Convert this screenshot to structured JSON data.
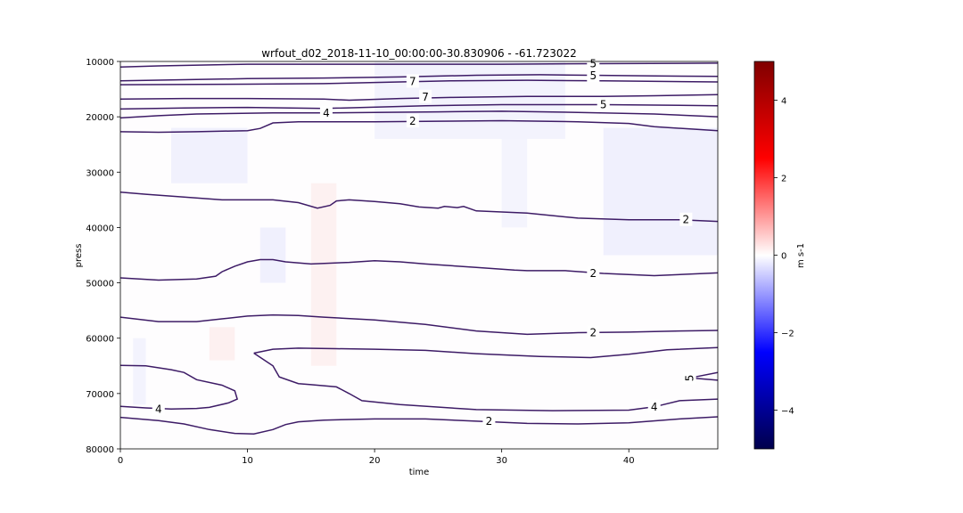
{
  "chart_data": {
    "type": "heatmap",
    "title": "wrfout_d02_2018-11-10_00:00:00-30.830906 - -61.723022",
    "xlabel": "time",
    "ylabel": "press",
    "xlim": [
      0,
      47
    ],
    "ylim": [
      80000,
      10000
    ],
    "y_inverted": true,
    "xticks": [
      0,
      10,
      20,
      30,
      40
    ],
    "xtick_labels": [
      "0",
      "10",
      "20",
      "30",
      "40"
    ],
    "yticks": [
      10000,
      20000,
      30000,
      40000,
      50000,
      60000,
      70000,
      80000
    ],
    "ytick_labels": [
      "10000",
      "20000",
      "30000",
      "40000",
      "50000",
      "60000",
      "70000",
      "80000"
    ],
    "colormap": "seismic",
    "colorbar": {
      "label": "m s-1",
      "range": [
        -5,
        5
      ],
      "ticks": [
        4,
        2,
        0,
        -2,
        -4
      ],
      "tick_labels": [
        "4",
        "2",
        "0",
        "−2",
        "−4"
      ]
    },
    "contours": [
      {
        "level": 5,
        "points": [
          [
            0,
            11000
          ],
          [
            3,
            10800
          ],
          [
            10,
            10500
          ],
          [
            20,
            10500
          ],
          [
            30,
            10500
          ],
          [
            37,
            10400
          ],
          [
            47,
            10300
          ]
        ]
      },
      {
        "level": 5,
        "points": [
          [
            0,
            13500
          ],
          [
            5,
            13300
          ],
          [
            10,
            13100
          ],
          [
            16,
            13000
          ],
          [
            22,
            12800
          ],
          [
            28,
            12500
          ],
          [
            33,
            12400
          ],
          [
            37,
            12500
          ],
          [
            42,
            12600
          ],
          [
            47,
            12700
          ]
        ]
      },
      {
        "level": 7,
        "points": [
          [
            0,
            14200
          ],
          [
            10,
            14100
          ],
          [
            16,
            14000
          ],
          [
            20,
            13800
          ],
          [
            26,
            13500
          ],
          [
            32,
            13400
          ],
          [
            38,
            13500
          ],
          [
            47,
            13700
          ]
        ]
      },
      {
        "level": 7,
        "points": [
          [
            0,
            16800
          ],
          [
            5,
            16700
          ],
          [
            10,
            16700
          ],
          [
            16,
            16800
          ],
          [
            18,
            17000
          ],
          [
            22,
            16700
          ],
          [
            26,
            16500
          ],
          [
            32,
            16300
          ],
          [
            38,
            16300
          ],
          [
            42,
            16200
          ],
          [
            47,
            16000
          ]
        ]
      },
      {
        "level": 5,
        "points": [
          [
            0,
            18600
          ],
          [
            5,
            18400
          ],
          [
            10,
            18300
          ],
          [
            16,
            18500
          ],
          [
            24,
            18000
          ],
          [
            30,
            17800
          ],
          [
            38,
            17800
          ],
          [
            47,
            18000
          ]
        ]
      },
      {
        "level": 4,
        "points": [
          [
            0,
            20200
          ],
          [
            3,
            19800
          ],
          [
            6,
            19500
          ],
          [
            12,
            19300
          ],
          [
            16,
            19300
          ],
          [
            20,
            19200
          ],
          [
            25,
            19100
          ],
          [
            30,
            19000
          ],
          [
            36,
            19200
          ],
          [
            42,
            19500
          ],
          [
            47,
            20000
          ]
        ]
      },
      {
        "level": 2,
        "points": [
          [
            0,
            22700
          ],
          [
            3,
            22800
          ],
          [
            6,
            22700
          ],
          [
            10,
            22500
          ],
          [
            11,
            22100
          ],
          [
            12,
            21100
          ],
          [
            14,
            20900
          ],
          [
            20,
            20900
          ],
          [
            25,
            20800
          ],
          [
            30,
            20700
          ],
          [
            36,
            20900
          ],
          [
            40,
            21200
          ],
          [
            42,
            21800
          ],
          [
            47,
            22500
          ]
        ]
      },
      {
        "level": 2,
        "points": [
          [
            0,
            33600
          ],
          [
            2,
            34000
          ],
          [
            5,
            34500
          ],
          [
            8,
            35000
          ],
          [
            12,
            35000
          ],
          [
            14,
            35500
          ],
          [
            15.5,
            36500
          ],
          [
            16.5,
            36000
          ],
          [
            17,
            35200
          ],
          [
            18,
            35000
          ],
          [
            20,
            35300
          ],
          [
            22,
            35700
          ],
          [
            23.5,
            36300
          ],
          [
            25,
            36500
          ],
          [
            25.5,
            36200
          ],
          [
            26.5,
            36400
          ],
          [
            27,
            36200
          ],
          [
            28,
            37000
          ],
          [
            32,
            37400
          ],
          [
            36,
            38300
          ],
          [
            40,
            38600
          ],
          [
            44,
            38600
          ],
          [
            47,
            38900
          ]
        ]
      },
      {
        "level": 2,
        "points": [
          [
            0,
            49100
          ],
          [
            3,
            49500
          ],
          [
            6,
            49300
          ],
          [
            7.5,
            48800
          ],
          [
            8,
            48000
          ],
          [
            9,
            47000
          ],
          [
            10,
            46200
          ],
          [
            11,
            45800
          ],
          [
            12,
            45800
          ],
          [
            13,
            46200
          ],
          [
            15,
            46600
          ],
          [
            18,
            46300
          ],
          [
            20,
            46000
          ],
          [
            22,
            46200
          ],
          [
            24,
            46600
          ],
          [
            28,
            47200
          ],
          [
            31,
            47700
          ],
          [
            32,
            47800
          ],
          [
            35,
            47800
          ],
          [
            38,
            48300
          ],
          [
            40,
            48500
          ],
          [
            42,
            48700
          ],
          [
            47,
            48200
          ]
        ]
      },
      {
        "level": 2,
        "points": [
          [
            0,
            56200
          ],
          [
            3,
            57000
          ],
          [
            6,
            57000
          ],
          [
            8,
            56500
          ],
          [
            10,
            56000
          ],
          [
            12,
            55800
          ],
          [
            14,
            55900
          ],
          [
            16,
            56200
          ],
          [
            20,
            56700
          ],
          [
            24,
            57500
          ],
          [
            28,
            58700
          ],
          [
            32,
            59300
          ],
          [
            36,
            59000
          ],
          [
            40,
            58900
          ],
          [
            44,
            58700
          ],
          [
            47,
            58600
          ]
        ]
      },
      {
        "level": 2,
        "points": [
          [
            10.5,
            62700
          ],
          [
            12,
            62000
          ],
          [
            14,
            61800
          ],
          [
            17,
            61900
          ],
          [
            20,
            62000
          ],
          [
            24,
            62200
          ],
          [
            28,
            62800
          ],
          [
            33,
            63300
          ],
          [
            37,
            63500
          ],
          [
            38,
            63300
          ],
          [
            40,
            62900
          ],
          [
            43,
            62100
          ],
          [
            47,
            61700
          ]
        ]
      },
      {
        "level": 5,
        "points": [
          [
            45,
            67100
          ],
          [
            47,
            66200
          ]
        ]
      },
      {
        "level": 5,
        "points": [
          [
            45,
            67200
          ],
          [
            47,
            67600
          ]
        ]
      },
      {
        "level": 4,
        "points": [
          [
            0,
            64900
          ],
          [
            2,
            65000
          ],
          [
            4,
            65700
          ],
          [
            5,
            66200
          ],
          [
            6,
            67500
          ],
          [
            8,
            68500
          ],
          [
            9,
            69500
          ],
          [
            9.2,
            71000
          ],
          [
            8.5,
            71700
          ],
          [
            7,
            72500
          ],
          [
            6,
            72700
          ],
          [
            4,
            72800
          ],
          [
            2,
            72600
          ],
          [
            0,
            72300
          ]
        ]
      },
      {
        "level": 4,
        "points": [
          [
            10.5,
            62700
          ],
          [
            12,
            65000
          ],
          [
            12.5,
            67000
          ],
          [
            14,
            68200
          ],
          [
            15,
            68400
          ],
          [
            17,
            68800
          ],
          [
            18,
            70000
          ],
          [
            19,
            71300
          ],
          [
            22,
            72000
          ],
          [
            28,
            72900
          ],
          [
            34,
            73100
          ],
          [
            40,
            73000
          ],
          [
            42,
            72400
          ],
          [
            44,
            71300
          ],
          [
            47,
            71000
          ]
        ]
      },
      {
        "level": 2,
        "points": [
          [
            0,
            74300
          ],
          [
            3,
            74900
          ],
          [
            5,
            75500
          ],
          [
            7,
            76500
          ],
          [
            9,
            77200
          ],
          [
            10.5,
            77300
          ],
          [
            12,
            76500
          ],
          [
            13,
            75600
          ],
          [
            14,
            75100
          ],
          [
            16,
            74800
          ],
          [
            20,
            74600
          ],
          [
            24,
            74600
          ],
          [
            28,
            75000
          ],
          [
            32,
            75400
          ],
          [
            36,
            75500
          ],
          [
            40,
            75300
          ],
          [
            44,
            74600
          ],
          [
            47,
            74200
          ]
        ]
      }
    ],
    "contour_labels": [
      {
        "text": "5",
        "x": 37.2,
        "y": 10400
      },
      {
        "text": "5",
        "x": 37.2,
        "y": 12600
      },
      {
        "text": "7",
        "x": 23,
        "y": 13600
      },
      {
        "text": "7",
        "x": 24,
        "y": 16400
      },
      {
        "text": "5",
        "x": 38,
        "y": 17800
      },
      {
        "text": "4",
        "x": 16.2,
        "y": 19300
      },
      {
        "text": "2",
        "x": 23,
        "y": 20800
      },
      {
        "text": "2",
        "x": 44.5,
        "y": 38600
      },
      {
        "text": "2",
        "x": 37.2,
        "y": 48300
      },
      {
        "text": "2",
        "x": 37.2,
        "y": 59000
      },
      {
        "text": "5",
        "x": 44.8,
        "y": 67200,
        "rotated": true
      },
      {
        "text": "4",
        "x": 3,
        "y": 72800
      },
      {
        "text": "4",
        "x": 42,
        "y": 72400
      },
      {
        "text": "2",
        "x": 29,
        "y": 75000
      }
    ],
    "shading_notes": "near-zero field, mostly white with faint blue/red cells",
    "faint_cells": [
      {
        "x0": 4,
        "x1": 10,
        "y0": 22000,
        "y1": 32000,
        "color": "#f1f1fd"
      },
      {
        "x0": 11,
        "x1": 13,
        "y0": 40000,
        "y1": 50000,
        "color": "#f0f0fd"
      },
      {
        "x0": 15,
        "x1": 17,
        "y0": 32000,
        "y1": 65000,
        "color": "#fdf1f1"
      },
      {
        "x0": 7,
        "x1": 9,
        "y0": 58000,
        "y1": 64000,
        "color": "#fdf0f0"
      },
      {
        "x0": 20,
        "x1": 35,
        "y0": 10000,
        "y1": 24000,
        "color": "#f3f3fd"
      },
      {
        "x0": 38,
        "x1": 47,
        "y0": 22000,
        "y1": 45000,
        "color": "#f0f0fd"
      },
      {
        "x0": 1,
        "x1": 2,
        "y0": 60000,
        "y1": 72000,
        "color": "#f3f3fd"
      },
      {
        "x0": 30,
        "x1": 32,
        "y0": 24000,
        "y1": 40000,
        "color": "#f4f4fd"
      }
    ]
  }
}
